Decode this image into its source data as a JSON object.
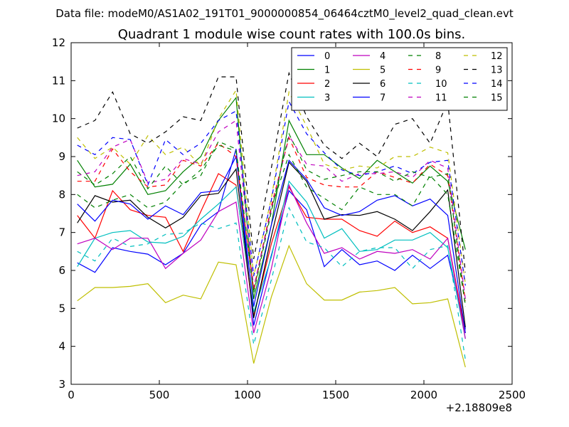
{
  "chart_data": {
    "type": "line",
    "suptitle": "Data file: modeM0/AS1A02_191T01_9000000854_06464cztM0_level2_quad_clean.evt",
    "title": "Quadrant 1 module wise count rates with 100.0s bins.",
    "xlabel": "",
    "ylabel": "",
    "x_offset_label": "+2.18809e8",
    "xlim": [
      0,
      2500
    ],
    "ylim": [
      3,
      12
    ],
    "xticks": [
      0,
      500,
      1000,
      1500,
      2000,
      2500
    ],
    "yticks": [
      3,
      4,
      5,
      6,
      7,
      8,
      9,
      10,
      11,
      12
    ],
    "legend_position": "top-right",
    "legend_columns": 4,
    "x": [
      35,
      135,
      235,
      335,
      435,
      535,
      635,
      735,
      835,
      935,
      1035,
      1135,
      1235,
      1335,
      1435,
      1535,
      1635,
      1735,
      1835,
      1935,
      2035,
      2135,
      2235
    ],
    "series": [
      {
        "name": "0",
        "color": "#0000ff",
        "dash": "solid",
        "values": [
          6.2,
          5.95,
          6.6,
          6.5,
          6.43,
          6.15,
          6.45,
          7.2,
          7.55,
          9.2,
          4.55,
          6.4,
          8.1,
          7.6,
          6.1,
          6.55,
          6.15,
          6.25,
          6.0,
          6.4,
          6.05,
          6.4,
          4.45
        ]
      },
      {
        "name": "1",
        "color": "#008000",
        "dash": "solid",
        "values": [
          8.9,
          8.2,
          8.27,
          8.8,
          8.0,
          8.1,
          8.6,
          9.0,
          9.95,
          10.55,
          5.25,
          7.2,
          9.95,
          9.05,
          9.05,
          8.7,
          8.42,
          8.9,
          8.6,
          8.3,
          8.75,
          8.35,
          6.55
        ]
      },
      {
        "name": "2",
        "color": "#ff0000",
        "dash": "solid",
        "values": [
          7.45,
          6.85,
          8.1,
          7.6,
          7.45,
          7.4,
          6.5,
          7.55,
          8.55,
          8.25,
          4.8,
          6.7,
          8.2,
          7.4,
          7.35,
          7.35,
          7.05,
          6.9,
          7.3,
          7.0,
          7.15,
          6.85,
          4.35
        ]
      },
      {
        "name": "3",
        "color": "#00bfbf",
        "dash": "solid",
        "values": [
          6.1,
          6.85,
          7.0,
          7.05,
          6.75,
          6.72,
          6.9,
          7.35,
          7.75,
          8.2,
          4.9,
          6.35,
          8.35,
          7.8,
          6.85,
          7.1,
          6.5,
          6.55,
          6.8,
          6.8,
          7.0,
          6.6,
          4.2
        ]
      },
      {
        "name": "4",
        "color": "#bf00bf",
        "dash": "solid",
        "values": [
          6.7,
          6.85,
          6.55,
          6.85,
          6.85,
          6.05,
          6.45,
          6.8,
          7.55,
          7.8,
          4.35,
          6.05,
          8.25,
          7.25,
          6.45,
          6.6,
          6.3,
          6.5,
          6.45,
          6.55,
          6.3,
          6.85,
          4.2
        ]
      },
      {
        "name": "5",
        "color": "#bfbf00",
        "dash": "solid",
        "values": [
          5.2,
          5.55,
          5.55,
          5.58,
          5.65,
          5.15,
          5.35,
          5.25,
          6.22,
          6.15,
          3.55,
          5.3,
          6.65,
          5.65,
          5.22,
          5.22,
          5.43,
          5.47,
          5.55,
          5.12,
          5.15,
          5.25,
          3.45
        ]
      },
      {
        "name": "6",
        "color": "#000000",
        "dash": "solid",
        "values": [
          7.25,
          7.97,
          7.8,
          7.85,
          7.4,
          7.12,
          7.4,
          7.97,
          8.03,
          8.67,
          4.75,
          6.9,
          8.85,
          8.35,
          7.35,
          7.47,
          7.45,
          7.55,
          7.35,
          7.05,
          7.55,
          8.12,
          4.5
        ]
      },
      {
        "name": "7",
        "color": "#0000ff",
        "dash": "solid",
        "values": [
          7.75,
          7.3,
          7.85,
          7.75,
          7.35,
          7.7,
          7.47,
          8.05,
          8.1,
          9.0,
          5.05,
          7.2,
          8.9,
          8.4,
          7.65,
          7.45,
          7.55,
          7.85,
          7.97,
          7.7,
          7.88,
          7.45,
          4.35
        ]
      },
      {
        "name": "8",
        "color": "#008000",
        "dash": "dashed",
        "values": [
          8.0,
          7.65,
          7.85,
          8.0,
          7.65,
          7.8,
          8.3,
          8.5,
          9.4,
          9.2,
          5.45,
          7.65,
          9.05,
          8.2,
          7.9,
          7.6,
          8.2,
          8.0,
          8.0,
          7.7,
          8.5,
          8.0,
          5.1
        ]
      },
      {
        "name": "9",
        "color": "#ff0000",
        "dash": "dashed",
        "values": [
          8.35,
          8.35,
          9.2,
          8.6,
          8.2,
          8.25,
          8.9,
          8.75,
          9.35,
          9.0,
          5.5,
          7.7,
          9.5,
          8.45,
          8.25,
          8.2,
          8.2,
          8.6,
          8.45,
          8.3,
          8.8,
          8.5,
          5.2
        ]
      },
      {
        "name": "10",
        "color": "#00bfbf",
        "dash": "dashed",
        "values": [
          6.5,
          6.25,
          6.85,
          6.63,
          6.7,
          6.95,
          6.98,
          7.25,
          7.1,
          7.25,
          4.05,
          5.75,
          7.65,
          6.75,
          6.6,
          6.1,
          6.5,
          6.6,
          6.6,
          6.05,
          6.55,
          6.65,
          3.65
        ]
      },
      {
        "name": "11",
        "color": "#bf00bf",
        "dash": "dashed",
        "values": [
          8.5,
          8.6,
          9.25,
          9.45,
          8.3,
          8.4,
          8.95,
          8.8,
          9.65,
          9.95,
          5.55,
          7.6,
          9.55,
          8.8,
          8.75,
          8.35,
          8.55,
          8.55,
          8.6,
          8.45,
          8.9,
          8.7,
          5.25
        ]
      },
      {
        "name": "12",
        "color": "#bfbf00",
        "dash": "dashed",
        "values": [
          9.5,
          8.95,
          9.25,
          8.8,
          9.55,
          9.05,
          9.25,
          8.75,
          10.0,
          10.75,
          5.85,
          7.9,
          10.7,
          9.8,
          8.8,
          8.65,
          8.75,
          8.7,
          9.0,
          9.0,
          9.25,
          9.1,
          5.65
        ]
      },
      {
        "name": "13",
        "color": "#000000",
        "dash": "dashed",
        "values": [
          9.75,
          9.95,
          10.7,
          9.6,
          9.35,
          9.65,
          10.05,
          9.95,
          11.1,
          11.1,
          6.3,
          8.7,
          11.2,
          10.05,
          9.3,
          8.95,
          9.35,
          9.0,
          9.85,
          10.0,
          9.35,
          10.45,
          5.95
        ]
      },
      {
        "name": "14",
        "color": "#0000ff",
        "dash": "dashed",
        "values": [
          9.3,
          9.05,
          9.5,
          9.45,
          8.25,
          9.45,
          9.05,
          9.35,
          9.95,
          10.2,
          5.85,
          7.85,
          10.45,
          9.6,
          9.1,
          8.65,
          8.5,
          8.6,
          8.75,
          8.55,
          8.85,
          8.9,
          5.6
        ]
      },
      {
        "name": "15",
        "color": "#008000",
        "dash": "dashed",
        "values": [
          8.6,
          8.25,
          8.55,
          9.0,
          8.15,
          8.75,
          8.25,
          8.65,
          9.3,
          9.15,
          5.4,
          7.55,
          9.6,
          8.65,
          8.4,
          8.5,
          8.6,
          8.6,
          8.35,
          8.6,
          8.45,
          8.55,
          5.05
        ]
      }
    ]
  }
}
